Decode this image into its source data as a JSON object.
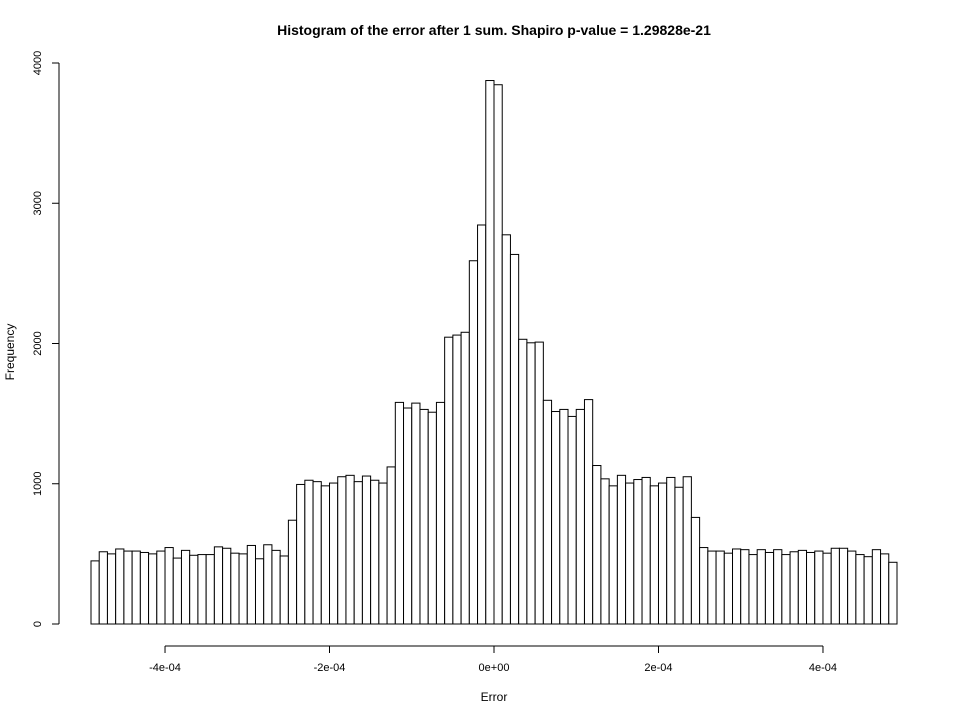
{
  "chart_data": {
    "type": "bar",
    "title": "Histogram of the error after 1 sum. Shapiro p-value = 1.29828e-21",
    "xlabel": "Error",
    "ylabel": "Frequency",
    "bin_width": 1e-05,
    "x_start": -0.00049,
    "xlim": [
      -0.00049,
      0.00049
    ],
    "ylim": [
      0,
      4000
    ],
    "x_ticks": [
      {
        "value": -0.0004,
        "label": "-4e-04"
      },
      {
        "value": -0.0002,
        "label": "-2e-04"
      },
      {
        "value": 0,
        "label": "0e+00"
      },
      {
        "value": 0.0002,
        "label": "2e-04"
      },
      {
        "value": 0.0004,
        "label": "4e-04"
      }
    ],
    "y_ticks": [
      {
        "value": 0,
        "label": "0"
      },
      {
        "value": 1000,
        "label": "1000"
      },
      {
        "value": 2000,
        "label": "2000"
      },
      {
        "value": 3000,
        "label": "3000"
      },
      {
        "value": 4000,
        "label": "4000"
      }
    ],
    "values": [
      450,
      515,
      500,
      535,
      520,
      520,
      510,
      500,
      520,
      545,
      470,
      525,
      490,
      495,
      495,
      550,
      540,
      505,
      500,
      560,
      465,
      565,
      525,
      485,
      740,
      995,
      1025,
      1015,
      985,
      1005,
      1050,
      1060,
      1015,
      1055,
      1025,
      1005,
      1120,
      1580,
      1540,
      1575,
      1530,
      1510,
      1580,
      2045,
      2060,
      2080,
      2590,
      2845,
      3875,
      3845,
      2775,
      2635,
      2030,
      2005,
      2010,
      1595,
      1515,
      1530,
      1480,
      1530,
      1600,
      1130,
      1035,
      985,
      1060,
      1005,
      1030,
      1045,
      985,
      1005,
      1045,
      975,
      1050,
      760,
      545,
      520,
      520,
      505,
      535,
      530,
      495,
      530,
      510,
      530,
      495,
      515,
      525,
      510,
      520,
      505,
      540,
      540,
      520,
      495,
      480,
      530,
      500,
      440
    ],
    "grid": false,
    "legend": "none"
  }
}
